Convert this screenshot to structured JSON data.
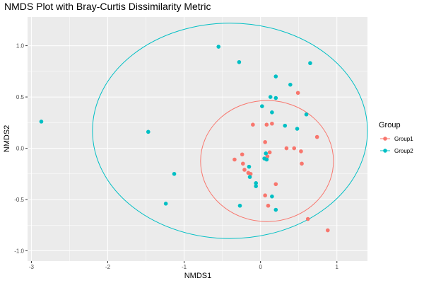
{
  "chart_data": {
    "type": "scatter",
    "title": "NMDS Plot with Bray-Curtis Dissimilarity Metric",
    "xlabel": "NMDS1",
    "ylabel": "NMDS2",
    "xlim": [
      -3.05,
      1.4
    ],
    "ylim": [
      -1.1,
      1.28
    ],
    "x_ticks": [
      -3,
      -2,
      -1,
      0,
      1
    ],
    "x_tick_labels": [
      "-3",
      "-2",
      "-1",
      "0",
      "1"
    ],
    "y_ticks": [
      -1.0,
      -0.5,
      0.0,
      0.5,
      1.0
    ],
    "y_tick_labels": [
      "-1.0",
      "-0.5",
      "0.0",
      "0.5",
      "1.0"
    ],
    "grid": true,
    "legend": {
      "title": "Group",
      "position": "right"
    },
    "series": [
      {
        "name": "Group1",
        "color": "#F8766D",
        "points": [
          [
            0.49,
            0.54
          ],
          [
            0.74,
            0.11
          ],
          [
            -0.1,
            0.23
          ],
          [
            0.08,
            0.23
          ],
          [
            0.15,
            0.24
          ],
          [
            0.06,
            0.06
          ],
          [
            0.34,
            0.0
          ],
          [
            0.44,
            0.0
          ],
          [
            0.53,
            -0.03
          ],
          [
            0.12,
            -0.04
          ],
          [
            -0.24,
            -0.06
          ],
          [
            -0.34,
            -0.11
          ],
          [
            -0.23,
            -0.15
          ],
          [
            0.09,
            -0.08
          ],
          [
            0.54,
            -0.15
          ],
          [
            -0.21,
            -0.21
          ],
          [
            -0.16,
            -0.24
          ],
          [
            -0.13,
            -0.25
          ],
          [
            0.2,
            -0.35
          ],
          [
            0.06,
            -0.46
          ],
          [
            0.1,
            -0.56
          ],
          [
            0.62,
            -0.69
          ],
          [
            0.88,
            -0.8
          ]
        ]
      },
      {
        "name": "Group2",
        "color": "#00BFC4",
        "points": [
          [
            -0.55,
            0.99
          ],
          [
            -0.28,
            0.84
          ],
          [
            0.65,
            0.83
          ],
          [
            0.2,
            0.7
          ],
          [
            0.39,
            0.62
          ],
          [
            0.13,
            0.5
          ],
          [
            0.2,
            0.49
          ],
          [
            0.02,
            0.41
          ],
          [
            0.15,
            0.35
          ],
          [
            0.6,
            0.33
          ],
          [
            0.32,
            0.22
          ],
          [
            0.48,
            0.19
          ],
          [
            -2.87,
            0.26
          ],
          [
            -1.47,
            0.16
          ],
          [
            0.07,
            -0.05
          ],
          [
            0.05,
            -0.1
          ],
          [
            0.08,
            -0.11
          ],
          [
            -0.15,
            -0.18
          ],
          [
            -1.13,
            -0.25
          ],
          [
            -0.14,
            -0.28
          ],
          [
            -0.06,
            -0.34
          ],
          [
            -0.06,
            -0.37
          ],
          [
            0.15,
            -0.47
          ],
          [
            -1.24,
            -0.54
          ],
          [
            -0.27,
            -0.56
          ],
          [
            0.2,
            -0.6
          ]
        ]
      }
    ],
    "ellipses": [
      {
        "group": "Group1",
        "color": "#F8766D",
        "center": [
          0.085,
          -0.125
        ],
        "radii": [
          0.87,
          0.59
        ]
      },
      {
        "group": "Group2",
        "color": "#00BFC4",
        "center": [
          -0.4,
          0.17
        ],
        "radii": [
          1.8,
          1.05
        ]
      }
    ]
  }
}
